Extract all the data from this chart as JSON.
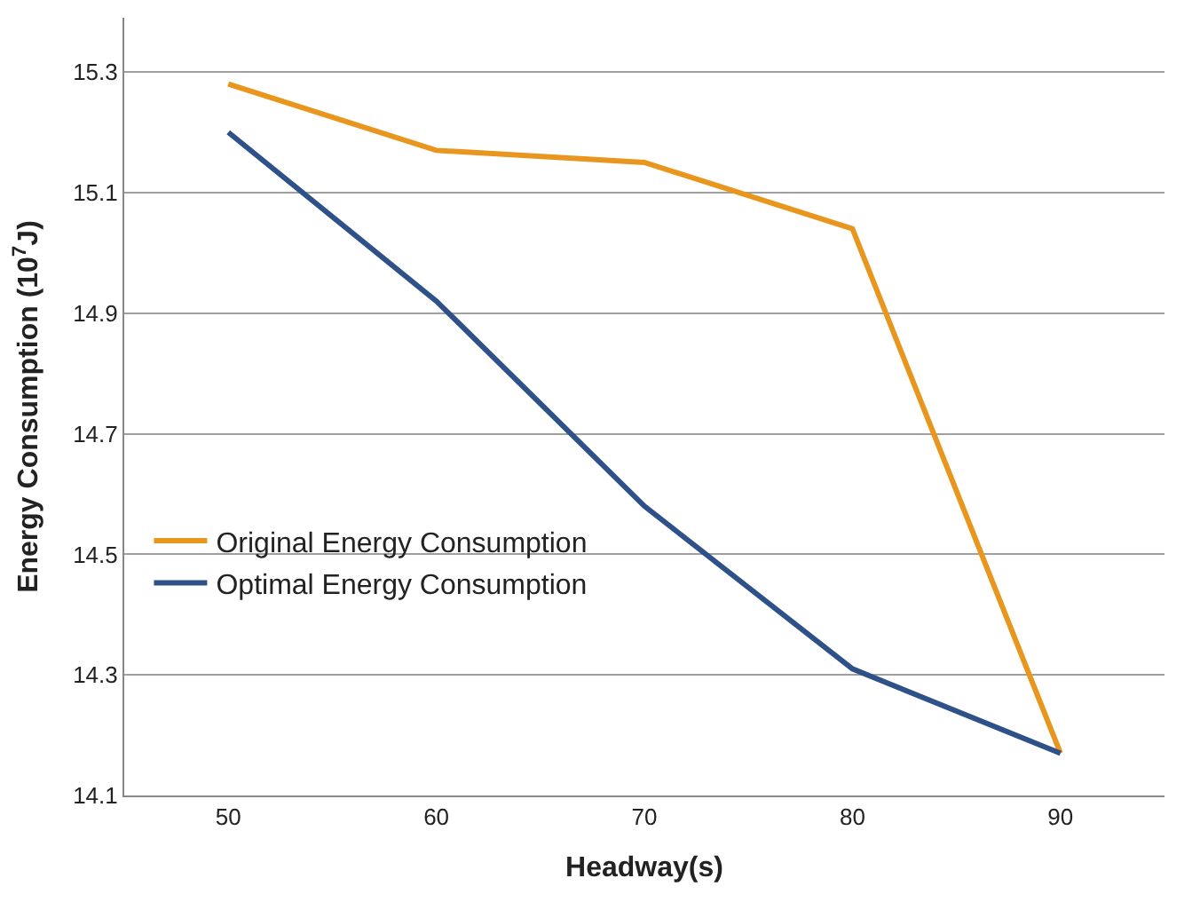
{
  "chart_data": {
    "type": "line",
    "xlabel": "Headway(s)",
    "ylabel": "Energy Consumption (10$^{7}$J)",
    "categories": [
      "50",
      "60",
      "70",
      "80",
      "90"
    ],
    "series": [
      {
        "name": "Original Energy Consumption",
        "color": "#e8961e",
        "values": [
          15.28,
          15.17,
          15.15,
          15.04,
          14.17
        ]
      },
      {
        "name": "Optimal Energy Consumption",
        "color": "#2e5189",
        "values": [
          15.2,
          14.92,
          14.58,
          14.31,
          14.17
        ]
      }
    ],
    "ylim": [
      14.1,
      15.39
    ],
    "yticks": [
      14.1,
      14.3,
      14.5,
      14.7,
      14.9,
      15.1,
      15.3
    ],
    "grid": "y",
    "legend": "left",
    "marker": "none",
    "line_style": "solid"
  }
}
